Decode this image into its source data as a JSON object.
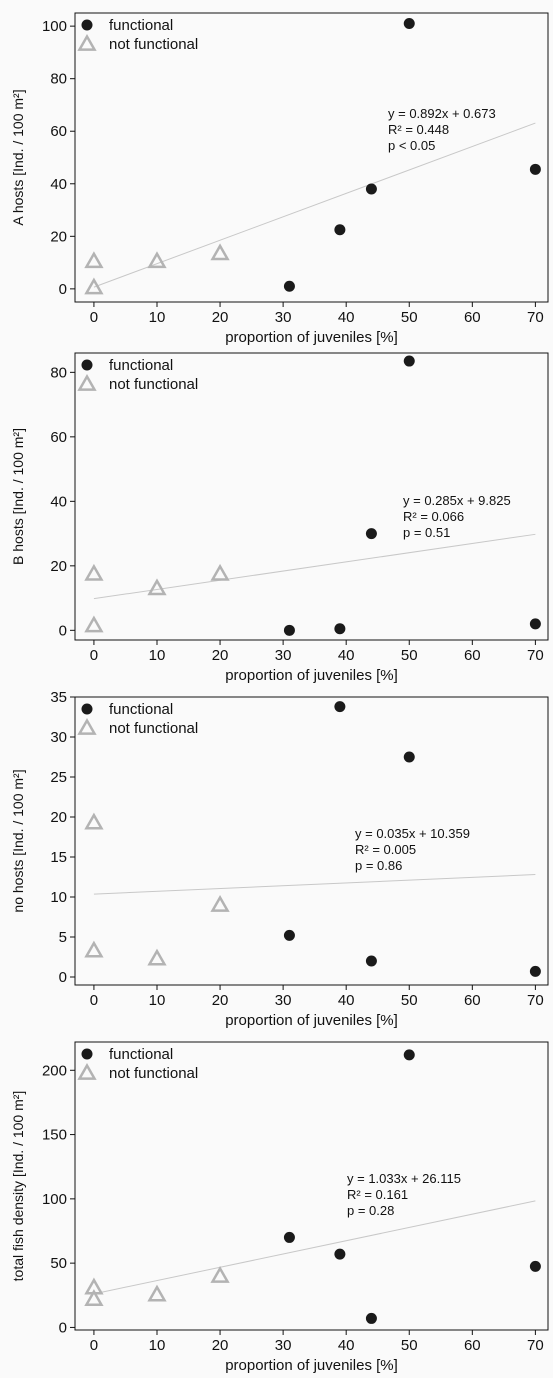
{
  "colors": {
    "functional": "#1a1a1a",
    "not_functional": "#b3b3b3",
    "regression": "#c8c8c8",
    "background": "#fafafa",
    "axis": "#111111"
  },
  "chart_data": [
    {
      "type": "scatter",
      "ylabel": "A hosts [Ind. / 100 m²]",
      "xlabel": "proportion of juveniles [%]",
      "xlim": [
        -3,
        72
      ],
      "ylim": [
        -5,
        105
      ],
      "xticks": [
        0,
        10,
        20,
        30,
        40,
        50,
        60,
        70
      ],
      "yticks": [
        0,
        20,
        40,
        60,
        80,
        100
      ],
      "legend": [
        "functional",
        "not functional"
      ],
      "legend_position": "top-left",
      "series": [
        {
          "name": "functional",
          "marker": "circle",
          "points": [
            [
              31,
              1
            ],
            [
              39,
              22.5
            ],
            [
              44,
              38
            ],
            [
              50,
              101
            ],
            [
              70,
              45.5
            ]
          ]
        },
        {
          "name": "not functional",
          "marker": "triangle",
          "points": [
            [
              0,
              0.5
            ],
            [
              0,
              10.5
            ],
            [
              10,
              10.5
            ],
            [
              20,
              13.5
            ]
          ]
        }
      ],
      "regression": {
        "slope": 0.892,
        "intercept": 0.673
      },
      "stats": [
        "y = 0.892x + 0.673",
        "R² = 0.448",
        "p < 0.05"
      ]
    },
    {
      "type": "scatter",
      "ylabel": "B hosts [Ind. / 100 m²]",
      "xlabel": "proportion of juveniles [%]",
      "xlim": [
        -3,
        72
      ],
      "ylim": [
        -3,
        86
      ],
      "xticks": [
        0,
        10,
        20,
        30,
        40,
        50,
        60,
        70
      ],
      "yticks": [
        0,
        20,
        40,
        60,
        80
      ],
      "legend": [
        "functional",
        "not functional"
      ],
      "legend_position": "top-left",
      "series": [
        {
          "name": "functional",
          "marker": "circle",
          "points": [
            [
              31,
              0
            ],
            [
              39,
              0.5
            ],
            [
              44,
              30
            ],
            [
              50,
              83.5
            ],
            [
              70,
              2
            ]
          ]
        },
        {
          "name": "not functional",
          "marker": "triangle",
          "points": [
            [
              0,
              1.5
            ],
            [
              0,
              17.5
            ],
            [
              10,
              13
            ],
            [
              20,
              17.5
            ]
          ]
        }
      ],
      "regression": {
        "slope": 0.285,
        "intercept": 9.825
      },
      "stats": [
        "y = 0.285x + 9.825",
        "R² = 0.066",
        "p = 0.51"
      ]
    },
    {
      "type": "scatter",
      "ylabel": "no hosts [Ind. / 100 m²]",
      "xlabel": "proportion of juveniles [%]",
      "xlim": [
        -3,
        72
      ],
      "ylim": [
        -1,
        35
      ],
      "xticks": [
        0,
        10,
        20,
        30,
        40,
        50,
        60,
        70
      ],
      "yticks": [
        0,
        5,
        10,
        15,
        20,
        25,
        30,
        35
      ],
      "legend": [
        "functional",
        "not functional"
      ],
      "legend_position": "top-left",
      "series": [
        {
          "name": "functional",
          "marker": "circle",
          "points": [
            [
              31,
              5.2
            ],
            [
              39,
              33.8
            ],
            [
              44,
              2
            ],
            [
              50,
              27.5
            ],
            [
              70,
              0.7
            ]
          ]
        },
        {
          "name": "not functional",
          "marker": "triangle",
          "points": [
            [
              0,
              3.3
            ],
            [
              0,
              19.3
            ],
            [
              10,
              2.3
            ],
            [
              20,
              9
            ]
          ]
        }
      ],
      "regression": {
        "slope": 0.035,
        "intercept": 10.359
      },
      "stats": [
        "y = 0.035x + 10.359",
        "R² = 0.005",
        "p = 0.86"
      ]
    },
    {
      "type": "scatter",
      "ylabel": "total fish density [Ind. / 100 m²]",
      "xlabel": "proportion of juveniles [%]",
      "xlim": [
        -3,
        72
      ],
      "ylim": [
        -2,
        222
      ],
      "xticks": [
        0,
        10,
        20,
        30,
        40,
        50,
        60,
        70
      ],
      "yticks": [
        0,
        50,
        100,
        150,
        200
      ],
      "legend": [
        "functional",
        "not functional"
      ],
      "legend_position": "top-left",
      "series": [
        {
          "name": "functional",
          "marker": "circle",
          "points": [
            [
              31,
              70
            ],
            [
              39,
              57
            ],
            [
              44,
              7
            ],
            [
              50,
              212
            ],
            [
              70,
              47.5
            ]
          ]
        },
        {
          "name": "not functional",
          "marker": "triangle",
          "points": [
            [
              0,
              22
            ],
            [
              0,
              31
            ],
            [
              10,
              25.5
            ],
            [
              20,
              40
            ]
          ]
        }
      ],
      "regression": {
        "slope": 1.033,
        "intercept": 26.115
      },
      "stats": [
        "y = 1.033x + 26.115",
        "R² = 0.161",
        "p = 0.28"
      ]
    }
  ]
}
